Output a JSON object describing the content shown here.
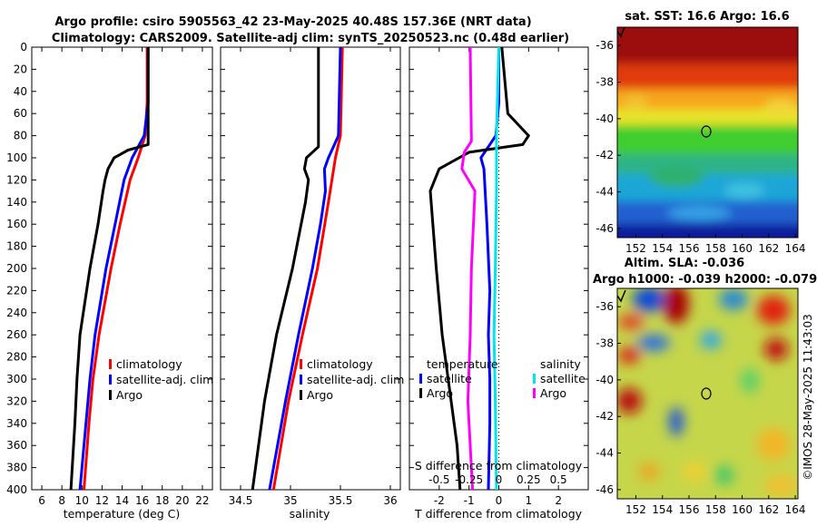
{
  "colors": {
    "climatology": "#ff0000",
    "satellite": "#0000ff",
    "argo": "#000000",
    "sat_salinity": "#00e5ee",
    "argo_salinity": "#ff00ff"
  },
  "chart_data": [
    {
      "type": "line",
      "title_line1": "Argo profile: csiro 5905563_42 23-May-2025 40.48S 157.36E (NRT data)",
      "title_line2": "Climatology: CARS2009. Satellite-adj clim: synTS_20250523.nc (0.48d earlier)",
      "xlabel": "temperature (deg C)",
      "ylim": [
        0,
        400
      ],
      "xlim": [
        5,
        23
      ],
      "xticks": [
        "6",
        "8",
        "10",
        "12",
        "14",
        "16",
        "18",
        "20",
        "22"
      ],
      "yticks": [
        "0",
        "20",
        "40",
        "60",
        "80",
        "100",
        "120",
        "140",
        "160",
        "180",
        "200",
        "220",
        "240",
        "260",
        "280",
        "300",
        "320",
        "340",
        "360",
        "380",
        "400"
      ],
      "legend": [
        "climatology",
        "satellite-adj. clim",
        "Argo"
      ],
      "series": [
        {
          "name": "climatology",
          "depth": [
            0,
            50,
            80,
            100,
            120,
            160,
            200,
            260,
            300,
            340,
            400
          ],
          "values": [
            16.5,
            16.5,
            16.3,
            15.6,
            14.8,
            13.8,
            12.9,
            11.7,
            11.1,
            10.7,
            10.2
          ]
        },
        {
          "name": "satellite-adj. clim",
          "depth": [
            0,
            50,
            80,
            100,
            120,
            160,
            200,
            260,
            300,
            340,
            400
          ],
          "values": [
            16.6,
            16.6,
            16.2,
            15.0,
            14.2,
            13.3,
            12.4,
            11.3,
            10.8,
            10.4,
            9.8
          ]
        },
        {
          "name": "Argo",
          "depth": [
            0,
            50,
            88,
            93,
            100,
            110,
            120,
            130,
            160,
            200,
            260,
            300,
            340,
            400
          ],
          "values": [
            16.6,
            16.6,
            16.6,
            14.6,
            13.2,
            12.6,
            12.3,
            12.1,
            11.6,
            10.8,
            9.8,
            9.5,
            9.3,
            8.9
          ]
        }
      ]
    },
    {
      "type": "line",
      "xlabel": "salinity",
      "ylim": [
        0,
        400
      ],
      "xlim": [
        34.3,
        36.1
      ],
      "xticks": [
        "34.5",
        "35",
        "35.5",
        "36"
      ],
      "legend": [
        "climatology",
        "satellite-adj. clim",
        "Argo"
      ],
      "series": [
        {
          "name": "climatology",
          "depth": [
            0,
            80,
            100,
            140,
            200,
            260,
            320,
            400
          ],
          "values": [
            35.52,
            35.5,
            35.45,
            35.38,
            35.27,
            35.12,
            34.98,
            34.83
          ]
        },
        {
          "name": "satellite-adj. clim",
          "depth": [
            0,
            80,
            100,
            110,
            130,
            160,
            200,
            260,
            320,
            400
          ],
          "values": [
            35.5,
            35.48,
            35.38,
            35.34,
            35.35,
            35.3,
            35.22,
            35.08,
            34.95,
            34.79
          ]
        },
        {
          "name": "Argo",
          "depth": [
            0,
            90,
            100,
            110,
            120,
            140,
            200,
            260,
            320,
            400
          ],
          "values": [
            35.28,
            35.28,
            35.16,
            35.14,
            35.18,
            35.15,
            35.02,
            34.86,
            34.74,
            34.62
          ]
        }
      ]
    },
    {
      "type": "line",
      "xlabel": "T difference from climatology",
      "top_axis_label": "S difference from climatology",
      "ylim": [
        0,
        400
      ],
      "xlim": [
        -3,
        3
      ],
      "xticks": [
        "-2",
        "-1",
        "0",
        "1",
        "2"
      ],
      "top_xticks": [
        "-0.5",
        "-0.25",
        "0",
        "0.25",
        "0.5"
      ],
      "legend_temperature_title": "temperature",
      "legend_salinity_title": "salinity",
      "legend_temperature": [
        "satellite",
        "Argo"
      ],
      "legend_salinity": [
        "satellite",
        "Argo"
      ],
      "series": [
        {
          "name": "T satellite",
          "depth": [
            0,
            50,
            80,
            100,
            110,
            160,
            220,
            260,
            300,
            340,
            400
          ],
          "values": [
            0,
            0,
            -0.1,
            -0.6,
            -0.5,
            -0.4,
            -0.3,
            -0.35,
            -0.3,
            -0.3,
            -0.35
          ]
        },
        {
          "name": "T Argo",
          "depth": [
            0,
            60,
            80,
            88,
            95,
            110,
            130,
            200,
            260,
            320,
            360,
            400
          ],
          "values": [
            0.1,
            0.3,
            1.0,
            0.8,
            -1.0,
            -2.0,
            -2.3,
            -2.1,
            -1.9,
            -1.6,
            -1.4,
            -1.3
          ]
        },
        {
          "name": "S satellite",
          "depth": [
            0,
            80,
            100,
            130,
            200,
            260,
            320,
            400
          ],
          "values": [
            0,
            -0.02,
            -0.02,
            -0.02,
            -0.03,
            -0.04,
            -0.03,
            -0.02
          ]
        },
        {
          "name": "S Argo",
          "depth": [
            0,
            85,
            95,
            110,
            130,
            200,
            260,
            320,
            400
          ],
          "values": [
            -0.24,
            -0.23,
            -0.29,
            -0.31,
            -0.2,
            -0.23,
            -0.24,
            -0.26,
            -0.22
          ]
        }
      ]
    },
    {
      "type": "heatmap",
      "title": "sat. SST: 16.6 Argo: 16.6",
      "xticks": [
        "152",
        "154",
        "156",
        "158",
        "160",
        "162",
        "164"
      ],
      "yticks": [
        "-36",
        "-38",
        "-40",
        "-42",
        "-44",
        "-46"
      ]
    },
    {
      "type": "heatmap",
      "title_line1": "Altim. SLA: -0.036",
      "title_line2": "Argo h1000: -0.039 h2000: -0.079",
      "xticks": [
        "152",
        "154",
        "156",
        "158",
        "160",
        "162",
        "164"
      ],
      "yticks": [
        "-36",
        "-38",
        "-40",
        "-42",
        "-44",
        "-46"
      ],
      "side_label": "©IMOS 28-May-2025 11:43:03"
    }
  ]
}
